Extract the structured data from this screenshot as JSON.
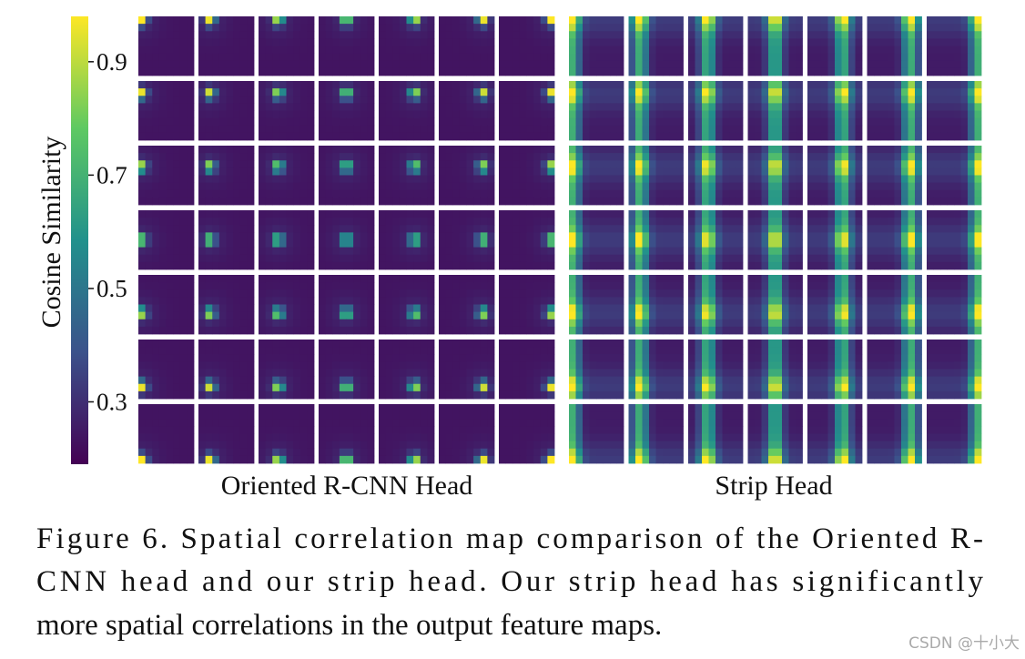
{
  "figure": {
    "colorbar": {
      "label": "Cosine Similarity",
      "lim": [
        0.19,
        0.98
      ],
      "ticks": [
        0.3,
        0.5,
        0.7,
        0.9
      ]
    },
    "panels": [
      "Oriented R-CNN Head",
      "Strip Head"
    ],
    "caption": [
      "Figure 6.  Spatial correlation map comparison of the Oriented R-",
      "CNN head and our strip head.  Our strip head has significantly",
      "more spatial correlations in the output feature maps."
    ],
    "watermark": "CSDN @十小大"
  }
}
